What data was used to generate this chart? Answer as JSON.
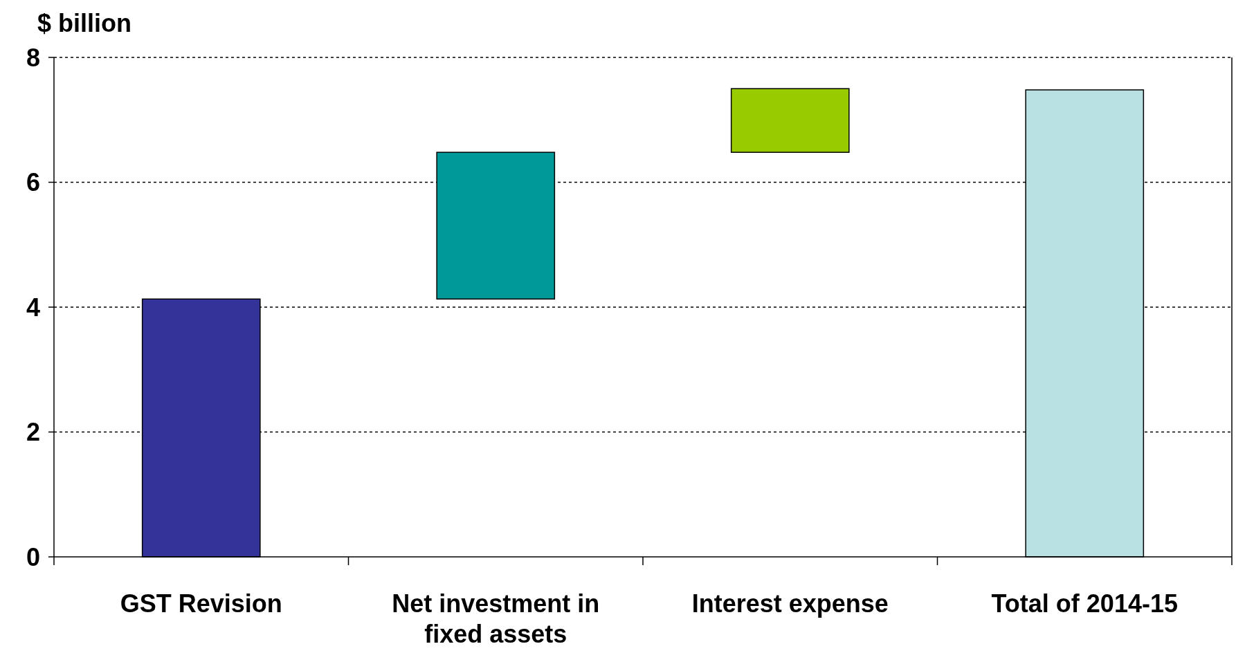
{
  "chart_data": {
    "type": "bar",
    "ylabel": "$ billion",
    "categories": [
      "GST Revision",
      "Net investment in fixed assets",
      "Interest expense",
      "Total of 2014-15"
    ],
    "values": [
      4.13,
      2.35,
      1.02,
      7.48
    ],
    "base": [
      0,
      4.13,
      6.48,
      0
    ],
    "colors": [
      "#333399",
      "#009999",
      "#99cc00",
      "#b9e0e3"
    ],
    "ylim": [
      0,
      8
    ],
    "yticks": [
      0,
      2,
      4,
      6,
      8
    ],
    "grid": "y"
  }
}
